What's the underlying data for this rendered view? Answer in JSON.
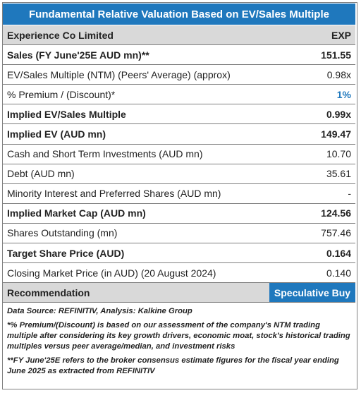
{
  "title": "Fundamental Relative Valuation Based on EV/Sales Multiple",
  "header": {
    "label": "Experience Co Limited",
    "value": "EXP"
  },
  "rows": [
    {
      "label": "Sales (FY June'25E AUD mn)**",
      "value": "151.55",
      "bold": true
    },
    {
      "label": "EV/Sales Multiple (NTM)  (Peers' Average) (approx)",
      "value": "0.98x",
      "bold": false
    },
    {
      "label": "% Premium / (Discount)*",
      "value": "1%",
      "bold": false,
      "accent": true
    },
    {
      "label": "Implied EV/Sales Multiple",
      "value": "0.99x",
      "bold": true
    },
    {
      "label": "Implied EV (AUD mn)",
      "value": "149.47",
      "bold": true
    },
    {
      "label": "Cash and Short Term Investments (AUD mn)",
      "value": "10.70",
      "bold": false
    },
    {
      "label": "Debt (AUD mn)",
      "value": "35.61",
      "bold": false
    },
    {
      "label": "Minority Interest and Preferred Shares (AUD mn)",
      "value": "-",
      "bold": false
    },
    {
      "label": "Implied Market Cap (AUD mn)",
      "value": "124.56",
      "bold": true
    },
    {
      "label": "Shares Outstanding (mn)",
      "value": "757.46",
      "bold": false
    },
    {
      "label": "Target Share Price (AUD)",
      "value": "0.164",
      "bold": true
    },
    {
      "label": "Closing Market Price (in AUD) (20 August 2024)",
      "value": "0.140",
      "bold": false
    }
  ],
  "recommendation": {
    "label": "Recommendation",
    "value": "Speculative Buy"
  },
  "notes": {
    "source": "Data Source: REFINITIV, Analysis: Kalkine Group",
    "premium_note": "*% Premium/(Discount) is based on our assessment of the company's NTM trading multiple after considering its key growth drivers, economic moat, stock's historical trading multiples versus peer average/median, and investment risks",
    "fy_note": "**FY June'25E refers to the broker consensus estimate figures for the fiscal year ending June 2025 as extracted from REFINITIV"
  },
  "colors": {
    "accent": "#1f78bd",
    "header_bg": "#d9d9d9"
  }
}
